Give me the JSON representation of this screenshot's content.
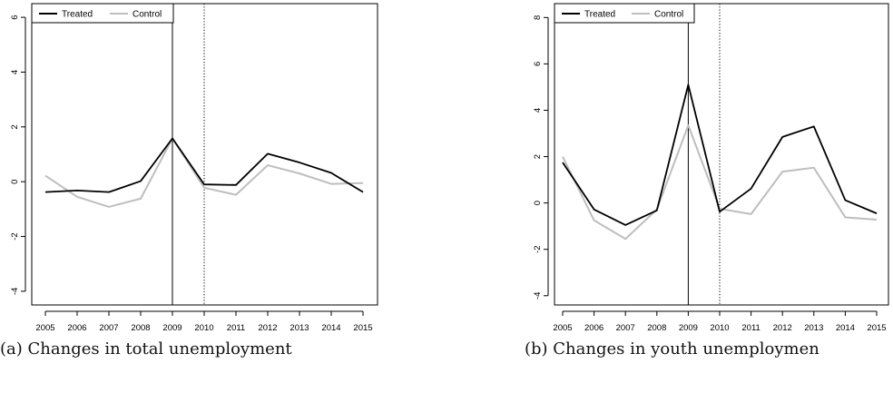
{
  "chart_data": [
    {
      "type": "line",
      "caption": "(a) Changes in total unemployment",
      "x": [
        2005,
        2006,
        2007,
        2008,
        2009,
        2010,
        2011,
        2012,
        2013,
        2014,
        2015
      ],
      "xlim": [
        2005,
        2015
      ],
      "ylim": [
        -4.5,
        6.5
      ],
      "yticks": [
        -4,
        -2,
        0,
        2,
        4,
        6
      ],
      "vlines": [
        {
          "x": 2009,
          "style": "solid"
        },
        {
          "x": 2010,
          "style": "dotted"
        }
      ],
      "legend": "top-left",
      "series": [
        {
          "name": "Treated",
          "color": "#000000",
          "values": [
            -0.38,
            -0.32,
            -0.38,
            0.02,
            1.58,
            -0.1,
            -0.12,
            1.02,
            0.7,
            0.32,
            -0.38
          ]
        },
        {
          "name": "Control",
          "color": "#bebebe",
          "values": [
            0.22,
            -0.55,
            -0.92,
            -0.62,
            1.58,
            -0.22,
            -0.48,
            0.6,
            0.3,
            -0.08,
            -0.05
          ]
        }
      ]
    },
    {
      "type": "line",
      "caption": "(b) Changes in youth unemploymen",
      "x": [
        2005,
        2006,
        2007,
        2008,
        2009,
        2010,
        2011,
        2012,
        2013,
        2014,
        2015
      ],
      "xlim": [
        2005,
        2015
      ],
      "ylim": [
        -4.4,
        8.6
      ],
      "yticks": [
        -4,
        -2,
        0,
        2,
        4,
        6,
        8
      ],
      "vlines": [
        {
          "x": 2009,
          "style": "solid"
        },
        {
          "x": 2010,
          "style": "dotted"
        }
      ],
      "legend": "top-left",
      "series": [
        {
          "name": "Treated",
          "color": "#000000",
          "values": [
            1.75,
            -0.28,
            -0.95,
            -0.32,
            5.1,
            -0.38,
            0.62,
            2.85,
            3.3,
            0.12,
            -0.45
          ]
        },
        {
          "name": "Control",
          "color": "#bebebe",
          "values": [
            2.0,
            -0.75,
            -1.55,
            -0.28,
            3.35,
            -0.25,
            -0.48,
            1.35,
            1.52,
            -0.62,
            -0.72
          ]
        }
      ]
    }
  ]
}
